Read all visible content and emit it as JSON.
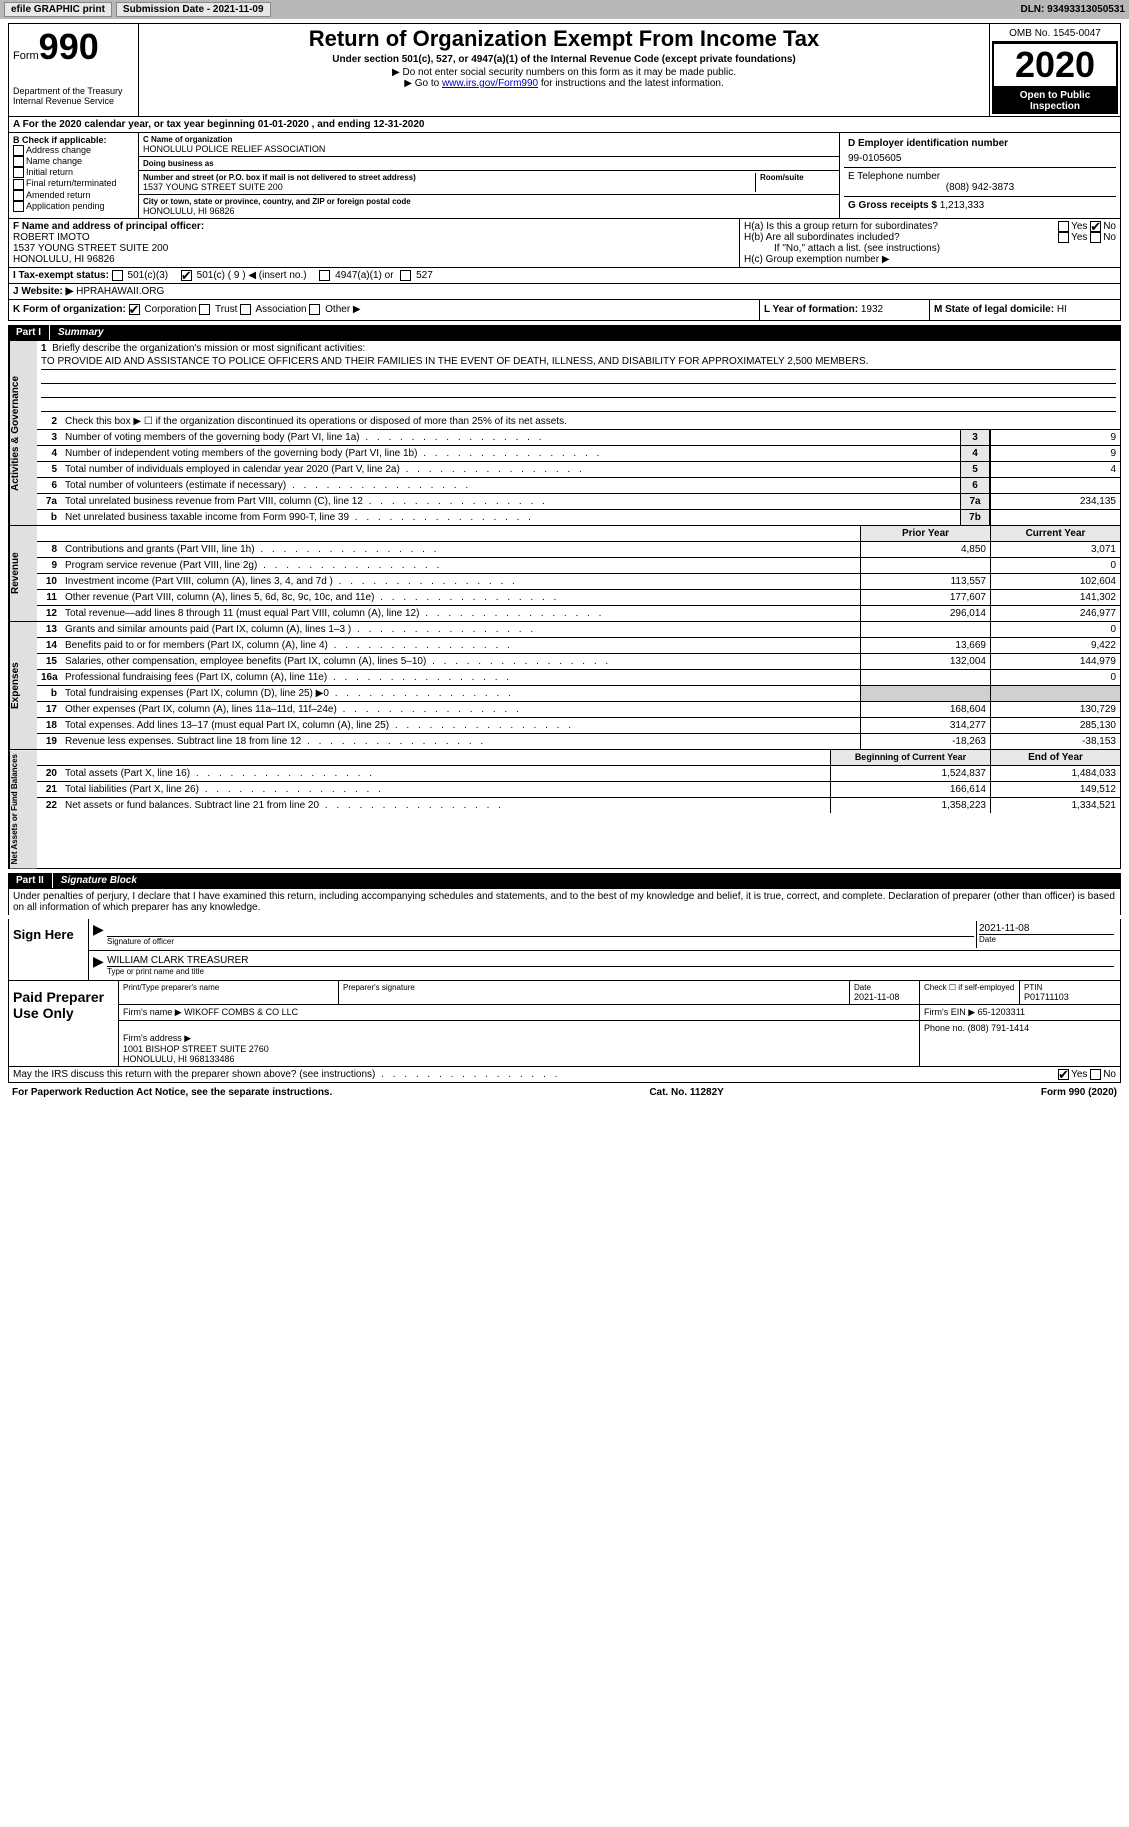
{
  "toolbar": {
    "efile": "efile GRAPHIC print",
    "sub_date_label": "Submission Date - 2021-11-09",
    "dln": "DLN: 93493313050531"
  },
  "header": {
    "form_label": "Form",
    "form_num": "990",
    "dept": "Department of the Treasury\nInternal Revenue Service",
    "title": "Return of Organization Exempt From Income Tax",
    "subtitle": "Under section 501(c), 527, or 4947(a)(1) of the Internal Revenue Code (except private foundations)",
    "arrow1": "▶ Do not enter social security numbers on this form as it may be made public.",
    "arrow2_pre": "▶ Go to ",
    "arrow2_link": "www.irs.gov/Form990",
    "arrow2_post": " for instructions and the latest information.",
    "omb": "OMB No. 1545-0047",
    "year": "2020",
    "open": "Open to Public Inspection"
  },
  "row_a": "A For the 2020 calendar year, or tax year beginning 01-01-2020     , and ending 12-31-2020",
  "col_b": {
    "title": "B Check if applicable:",
    "opts": [
      "Address change",
      "Name change",
      "Initial return",
      "Final return/terminated",
      "Amended return",
      "Application pending"
    ]
  },
  "col_c": {
    "name_label": "C Name of organization",
    "name": "HONOLULU POLICE RELIEF ASSOCIATION",
    "dba_label": "Doing business as",
    "dba": "",
    "addr_label": "Number and street (or P.O. box if mail is not delivered to street address)",
    "room_label": "Room/suite",
    "addr": "1537 YOUNG STREET SUITE 200",
    "city_label": "City or town, state or province, country, and ZIP or foreign postal code",
    "city": "HONOLULU, HI  96826"
  },
  "col_d": {
    "ein_label": "D Employer identification number",
    "ein": "99-0105605",
    "phone_label": "E Telephone number",
    "phone": "(808) 942-3873",
    "gross_label": "G Gross receipts $",
    "gross": "1,213,333"
  },
  "f": {
    "label": "F Name and address of principal officer:",
    "name": "ROBERT IMOTO",
    "addr": "1537 YOUNG STREET SUITE 200\nHONOLULU, HI  96826"
  },
  "h": {
    "a_label": "H(a)  Is this a group return for subordinates?",
    "b_label": "H(b)  Are all subordinates included?",
    "b_note": "If \"No,\" attach a list. (see instructions)",
    "c_label": "H(c)  Group exemption number ▶",
    "yes": "Yes",
    "no": "No"
  },
  "i": {
    "label": "I  Tax-exempt status:",
    "opts": [
      "501(c)(3)",
      "501(c) ( 9 ) ◀ (insert no.)",
      "4947(a)(1) or",
      "527"
    ]
  },
  "j": {
    "label": "J  Website: ▶",
    "val": "HPRAHAWAII.ORG"
  },
  "k": {
    "label": "K Form of organization:",
    "opts": [
      "Corporation",
      "Trust",
      "Association",
      "Other ▶"
    ]
  },
  "l": {
    "label": "L Year of formation:",
    "val": "1932"
  },
  "m": {
    "label": "M State of legal domicile:",
    "val": "HI"
  },
  "part1": {
    "num": "Part I",
    "title": "Summary",
    "side_gov": "Activities & Governance",
    "side_rev": "Revenue",
    "side_exp": "Expenses",
    "side_net": "Net Assets or Fund Balances",
    "line1_label": "Briefly describe the organization's mission or most significant activities:",
    "line1_text": "TO PROVIDE AID AND ASSISTANCE TO POLICE OFFICERS AND THEIR FAMILIES IN THE EVENT OF DEATH, ILLNESS, AND DISABILITY FOR APPROXIMATELY 2,500 MEMBERS.",
    "line2": "Check this box ▶ ☐  if the organization discontinued its operations or disposed of more than 25% of its net assets.",
    "prior_header": "Prior Year",
    "current_header": "Current Year",
    "beg_header": "Beginning of Current Year",
    "end_header": "End of Year",
    "lines_gov": [
      {
        "n": "3",
        "t": "Number of voting members of the governing body (Part VI, line 1a)",
        "box": "3",
        "v": "9"
      },
      {
        "n": "4",
        "t": "Number of independent voting members of the governing body (Part VI, line 1b)",
        "box": "4",
        "v": "9"
      },
      {
        "n": "5",
        "t": "Total number of individuals employed in calendar year 2020 (Part V, line 2a)",
        "box": "5",
        "v": "4"
      },
      {
        "n": "6",
        "t": "Total number of volunteers (estimate if necessary)",
        "box": "6",
        "v": ""
      },
      {
        "n": "7a",
        "t": "Total unrelated business revenue from Part VIII, column (C), line 12",
        "box": "7a",
        "v": "234,135"
      },
      {
        "n": "b",
        "t": "Net unrelated business taxable income from Form 990-T, line 39",
        "box": "7b",
        "v": ""
      }
    ],
    "lines_rev": [
      {
        "n": "8",
        "t": "Contributions and grants (Part VIII, line 1h)",
        "p": "4,850",
        "c": "3,071"
      },
      {
        "n": "9",
        "t": "Program service revenue (Part VIII, line 2g)",
        "p": "",
        "c": "0"
      },
      {
        "n": "10",
        "t": "Investment income (Part VIII, column (A), lines 3, 4, and 7d )",
        "p": "113,557",
        "c": "102,604"
      },
      {
        "n": "11",
        "t": "Other revenue (Part VIII, column (A), lines 5, 6d, 8c, 9c, 10c, and 11e)",
        "p": "177,607",
        "c": "141,302"
      },
      {
        "n": "12",
        "t": "Total revenue—add lines 8 through 11 (must equal Part VIII, column (A), line 12)",
        "p": "296,014",
        "c": "246,977"
      }
    ],
    "lines_exp": [
      {
        "n": "13",
        "t": "Grants and similar amounts paid (Part IX, column (A), lines 1–3 )",
        "p": "",
        "c": "0"
      },
      {
        "n": "14",
        "t": "Benefits paid to or for members (Part IX, column (A), line 4)",
        "p": "13,669",
        "c": "9,422"
      },
      {
        "n": "15",
        "t": "Salaries, other compensation, employee benefits (Part IX, column (A), lines 5–10)",
        "p": "132,004",
        "c": "144,979"
      },
      {
        "n": "16a",
        "t": "Professional fundraising fees (Part IX, column (A), line 11e)",
        "p": "",
        "c": "0"
      },
      {
        "n": "b",
        "t": "Total fundraising expenses (Part IX, column (D), line 25) ▶0",
        "p": "SHADE",
        "c": "SHADE"
      },
      {
        "n": "17",
        "t": "Other expenses (Part IX, column (A), lines 11a–11d, 11f–24e)",
        "p": "168,604",
        "c": "130,729"
      },
      {
        "n": "18",
        "t": "Total expenses. Add lines 13–17 (must equal Part IX, column (A), line 25)",
        "p": "314,277",
        "c": "285,130"
      },
      {
        "n": "19",
        "t": "Revenue less expenses. Subtract line 18 from line 12",
        "p": "-18,263",
        "c": "-38,153"
      }
    ],
    "lines_net": [
      {
        "n": "20",
        "t": "Total assets (Part X, line 16)",
        "p": "1,524,837",
        "c": "1,484,033"
      },
      {
        "n": "21",
        "t": "Total liabilities (Part X, line 26)",
        "p": "166,614",
        "c": "149,512"
      },
      {
        "n": "22",
        "t": "Net assets or fund balances. Subtract line 21 from line 20",
        "p": "1,358,223",
        "c": "1,334,521"
      }
    ]
  },
  "part2": {
    "num": "Part II",
    "title": "Signature Block",
    "declare": "Under penalties of perjury, I declare that I have examined this return, including accompanying schedules and statements, and to the best of my knowledge and belief, it is true, correct, and complete. Declaration of preparer (other than officer) is based on all information of which preparer has any knowledge.",
    "sign_here": "Sign Here",
    "sig_officer": "Signature of officer",
    "sig_date": "2021-11-08",
    "date_label": "Date",
    "officer_name": "WILLIAM CLARK TREASURER",
    "name_label": "Type or print name and title",
    "paid_prep": "Paid Preparer Use Only",
    "prep_name_label": "Print/Type preparer's name",
    "prep_sig_label": "Preparer's signature",
    "prep_date_label": "Date",
    "prep_date": "2021-11-08",
    "prep_self_label": "Check ☐ if self-employed",
    "prep_ptin_label": "PTIN",
    "prep_ptin": "P01711103",
    "firm_name_label": "Firm's name    ▶",
    "firm_name": "WIKOFF COMBS & CO LLC",
    "firm_ein_label": "Firm's EIN ▶",
    "firm_ein": "65-1203311",
    "firm_addr_label": "Firm's address ▶",
    "firm_addr": "1001 BISHOP STREET SUITE 2760\nHONOLULU, HI  968133486",
    "firm_phone_label": "Phone no.",
    "firm_phone": "(808) 791-1414",
    "discuss": "May the IRS discuss this return with the preparer shown above? (see instructions)",
    "footer_left": "For Paperwork Reduction Act Notice, see the separate instructions.",
    "footer_mid": "Cat. No. 11282Y",
    "footer_right": "Form 990 (2020)"
  }
}
